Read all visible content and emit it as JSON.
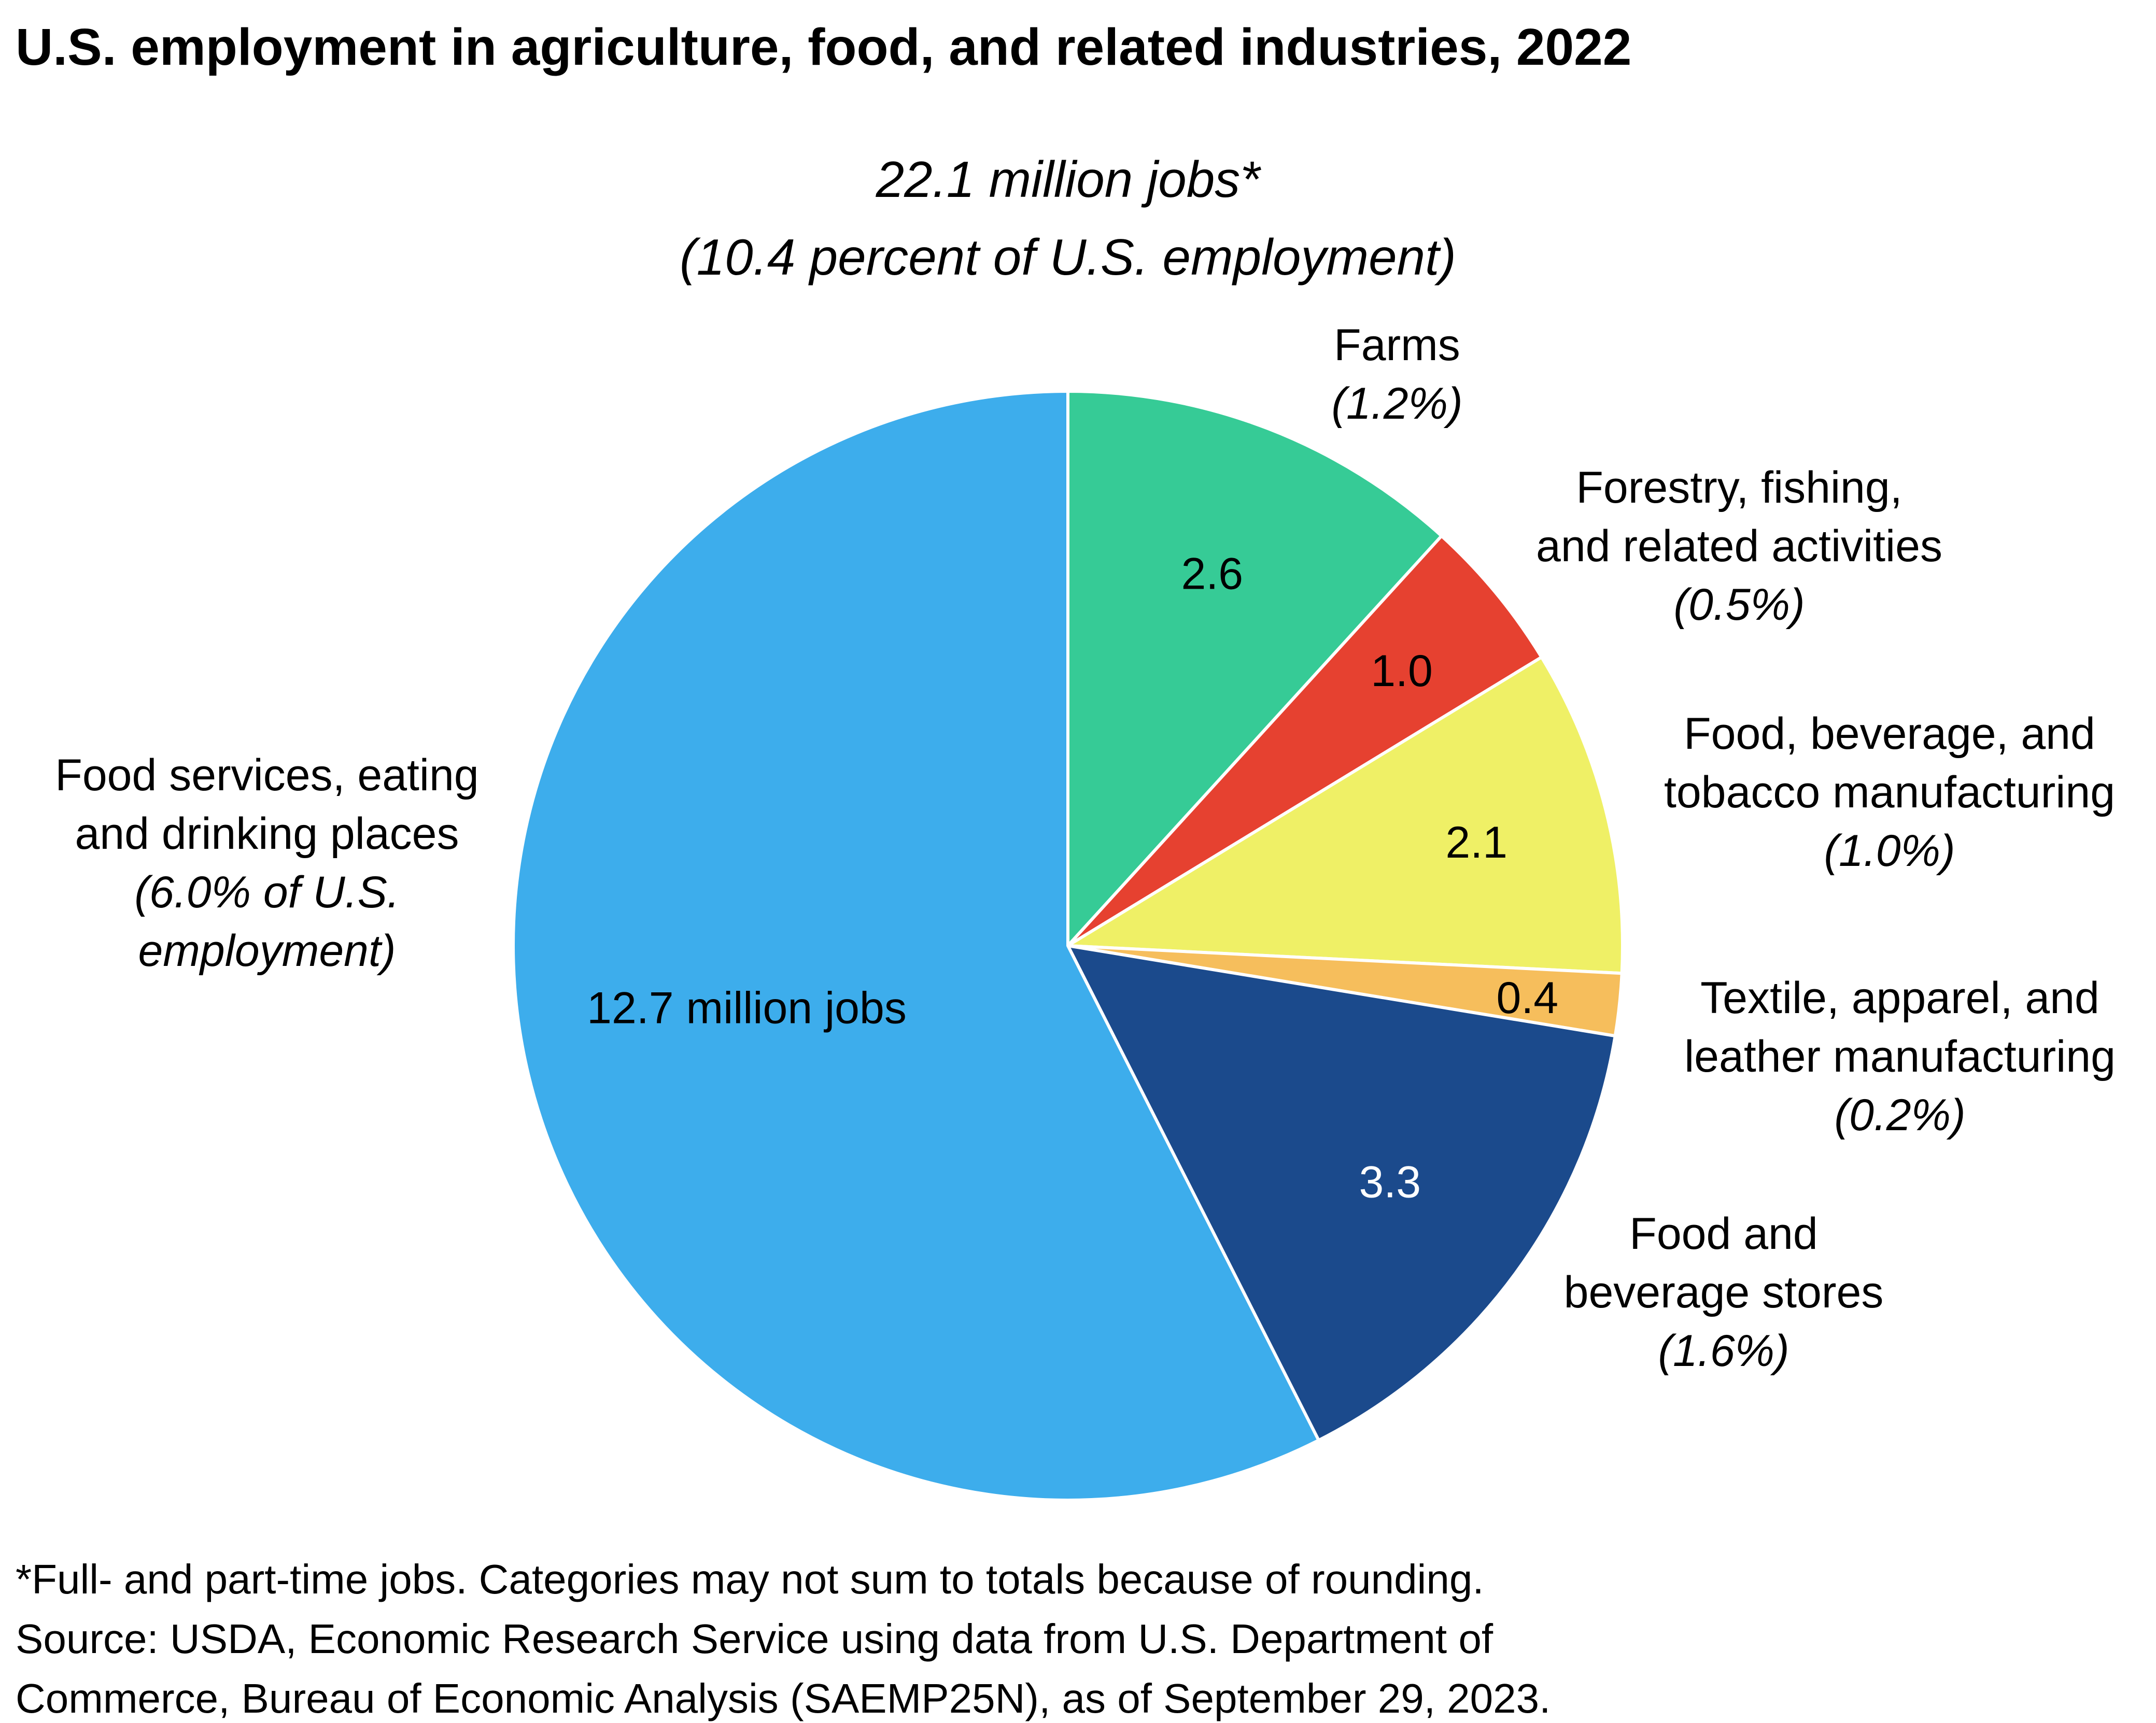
{
  "chart_data": {
    "type": "pie",
    "title": "U.S. employment in agriculture, food, and related industries, 2022",
    "subtitle": [
      "22.1 million jobs*",
      "(10.4 percent of U.S. employment)"
    ],
    "slices": [
      {
        "name_lines": [
          "Farms"
        ],
        "share": "(1.2%)",
        "value": 2.6,
        "value_label": "2.6",
        "color": "#36CB96"
      },
      {
        "name_lines": [
          "Forestry, fishing,",
          "and related activities"
        ],
        "share": "(0.5%)",
        "value": 1.0,
        "value_label": "1.0",
        "color": "#E64130"
      },
      {
        "name_lines": [
          "Food, beverage, and",
          "tobacco manufacturing"
        ],
        "share": "(1.0%)",
        "value": 2.1,
        "value_label": "2.1",
        "color": "#EFF066"
      },
      {
        "name_lines": [
          "Textile, apparel, and",
          "leather manufacturing"
        ],
        "share": "(0.2%)",
        "value": 0.4,
        "value_label": "0.4",
        "color": "#F6BE5C"
      },
      {
        "name_lines": [
          "Food and",
          "beverage stores"
        ],
        "share": "(1.6%)",
        "value": 3.3,
        "value_label": "3.3",
        "color": "#1B4A8C"
      },
      {
        "name_lines": [
          "Food services, eating",
          "and drinking places"
        ],
        "share_lines": [
          "(6.0% of U.S.",
          "employment)"
        ],
        "value": 12.7,
        "value_label": "12.7 million jobs",
        "color": "#3DADEC"
      }
    ],
    "start_angle": "12 o'clock",
    "direction": "clockwise"
  },
  "footnote": [
    "*Full- and part-time jobs. Categories may not sum to totals because of rounding.",
    "Source: USDA, Economic Research Service using data from U.S. Department of",
    "Commerce, Bureau of Economic Analysis (SAEMP25N), as of September 29, 2023."
  ]
}
